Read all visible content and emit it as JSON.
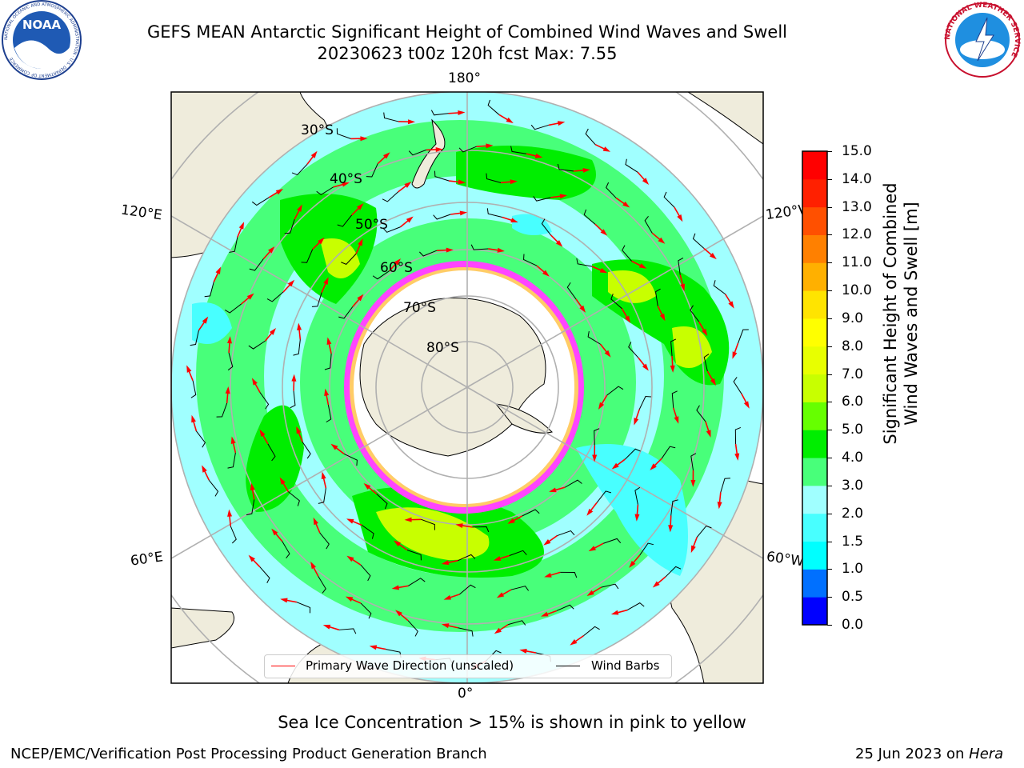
{
  "header": {
    "title_line1": "GEFS MEAN Antarctic Significant Height of Combined Wind Waves and Swell",
    "title_line2": "20230623 t00z 120h fcst   Max: 7.55"
  },
  "logos": {
    "noaa_text": "NOAA",
    "noaa_ring": "NATIONAL OCEANIC AND ATMOSPHERIC ADMINISTRATION · U.S. DEPARTMENT OF COMMERCE",
    "nws_ring": "NATIONAL WEATHER SERVICE"
  },
  "map": {
    "longitude_labels": {
      "top": "180°",
      "bottom": "0°",
      "left_upper": "120°E",
      "left_lower": "60°E",
      "right_upper": "120°W",
      "right_lower": "60°W"
    },
    "latitude_labels": [
      "30°S",
      "40°S",
      "50°S",
      "60°S",
      "70°S",
      "80°S"
    ],
    "colors": {
      "land": "#efecdc",
      "ice": "#ffffff",
      "grid": "#b0b0b0",
      "arrow": "#ff0000",
      "barb": "#000000"
    }
  },
  "legend": {
    "primary_wave": "Primary Wave Direction (unscaled)",
    "wind_barbs": "Wind Barbs"
  },
  "colorbar": {
    "label_line1": "Significant Height of Combined",
    "label_line2": "Wind Waves and Swell [m]",
    "ticks": [
      "15.0",
      "14.0",
      "13.0",
      "12.0",
      "11.0",
      "10.0",
      "9.0",
      "8.0",
      "7.0",
      "6.0",
      "5.0",
      "4.0",
      "3.0",
      "2.0",
      "1.5",
      "1.0",
      "0.5",
      "0.0"
    ],
    "colors_bottom_to_top": [
      "#0000ff",
      "#0070ff",
      "#00ffff",
      "#48ffff",
      "#a0ffff",
      "#48ff7a",
      "#00ee00",
      "#66ff00",
      "#c8ff00",
      "#e8ff00",
      "#ffff00",
      "#ffe400",
      "#ffb000",
      "#ff8000",
      "#ff5000",
      "#ff2000",
      "#ff0000"
    ]
  },
  "notes": {
    "sea_ice": "Sea Ice Concentration > 15% is shown in pink to yellow"
  },
  "footer": {
    "left": "NCEP/EMC/Verification Post Processing Product Generation Branch",
    "right_date": "25 Jun 2023 on",
    "right_host": "Hera"
  }
}
